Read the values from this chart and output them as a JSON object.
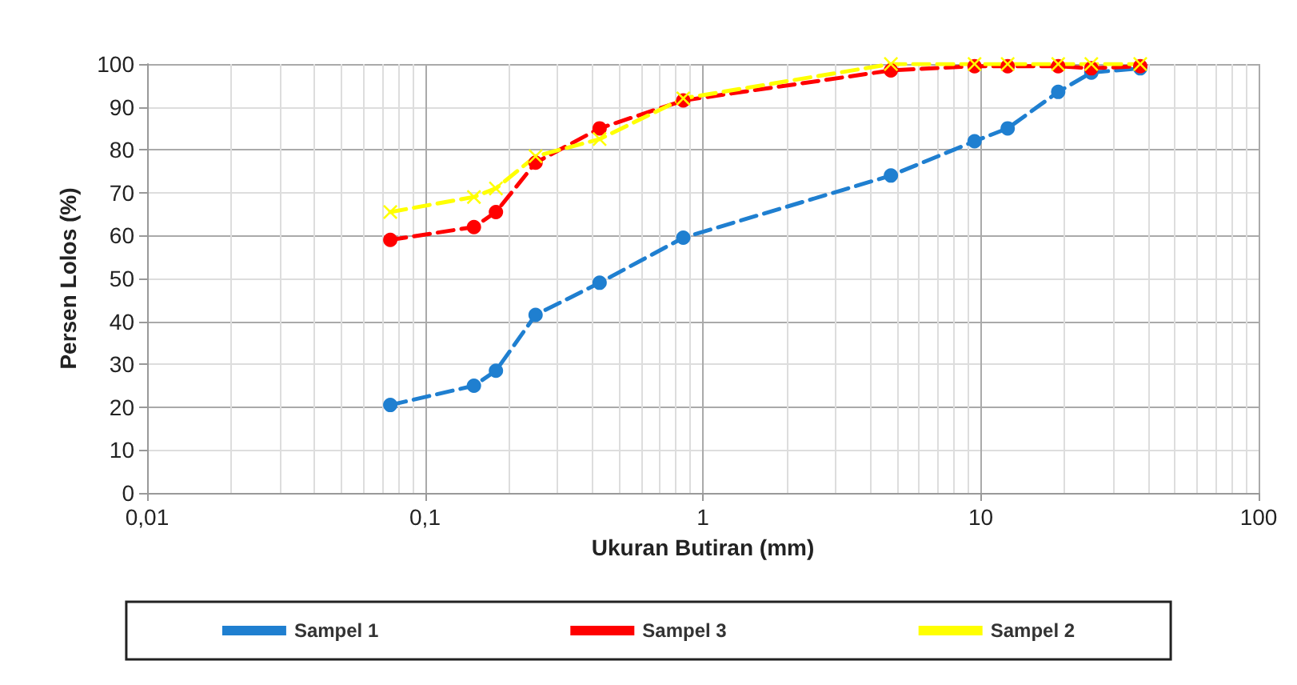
{
  "chart_data": {
    "type": "line",
    "xlabel": "Ukuran Butiran (mm)",
    "ylabel": "Persen Lolos (%)",
    "log": "x",
    "grid": true,
    "legend": "bottom",
    "line_style": "dashed",
    "xlim": [
      0.01,
      100
    ],
    "xticks": [
      {
        "value": 0.01,
        "label": "0,01"
      },
      {
        "value": 0.1,
        "label": "0,1"
      },
      1,
      10,
      100
    ],
    "ylim": [
      0,
      100
    ],
    "yticks": [
      0,
      10,
      20,
      30,
      40,
      50,
      60,
      70,
      80,
      90,
      100
    ],
    "x": [
      0.075,
      0.15,
      0.18,
      0.25,
      0.425,
      0.85,
      4.75,
      9.5,
      12.5,
      19,
      25,
      37.5
    ],
    "series": [
      {
        "name": "Sampel 1",
        "color": "#1f7fd0",
        "marker": "circle",
        "values": [
          20.5,
          25,
          28.5,
          41.5,
          49,
          59.5,
          74,
          82,
          85,
          93.5,
          98,
          99
        ]
      },
      {
        "name": "Sampel 3",
        "color": "#ff0000",
        "marker": "circle",
        "values": [
          59,
          62,
          65.5,
          77,
          85,
          91.5,
          98.5,
          99.5,
          99.5,
          99.5,
          99,
          99.5
        ]
      },
      {
        "name": "Sampel 2",
        "color": "#ffff00",
        "marker": "cross",
        "values": [
          65.5,
          69,
          71,
          78.5,
          82.5,
          92,
          100,
          100,
          100,
          100,
          100,
          100
        ]
      }
    ]
  }
}
